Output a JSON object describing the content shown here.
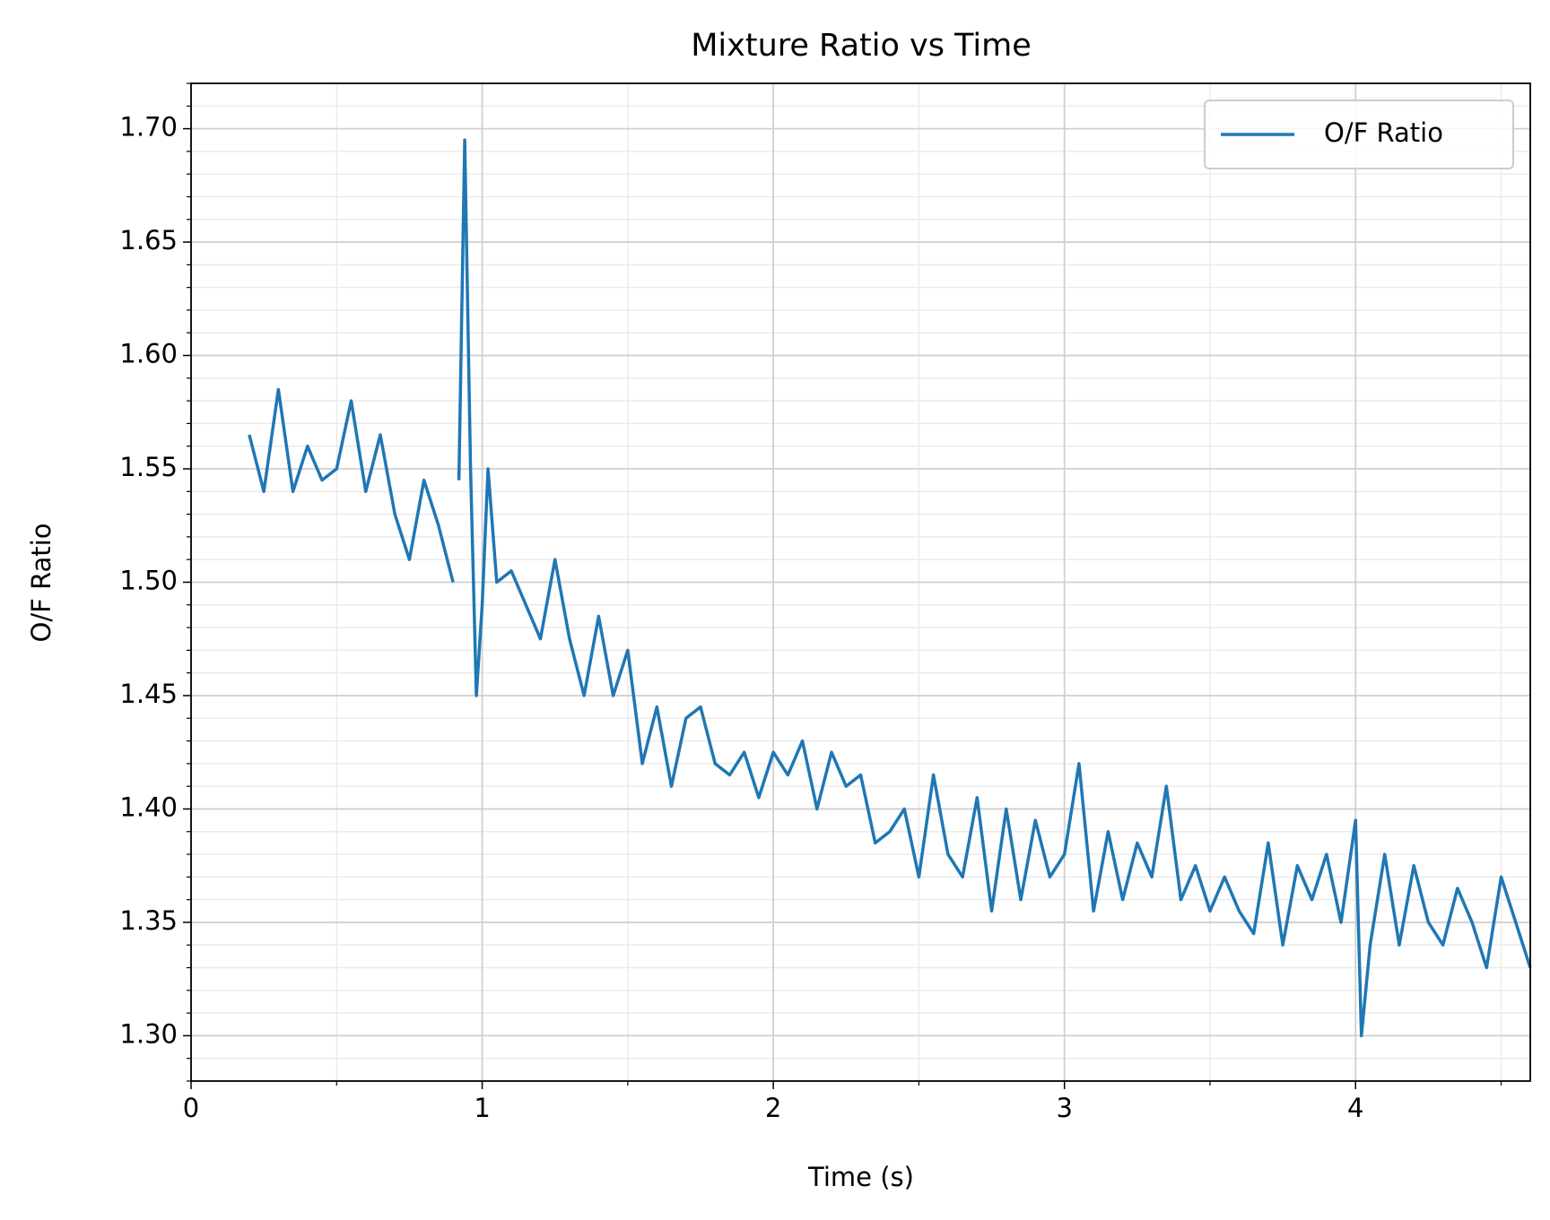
{
  "chart_data": {
    "type": "line",
    "title": "Mixture Ratio vs Time",
    "xlabel": "Time (s)",
    "ylabel": "O/F Ratio",
    "x": [
      0.2,
      0.25,
      0.3,
      0.35,
      0.4,
      0.45,
      0.5,
      0.55,
      0.6,
      0.65,
      0.7,
      0.75,
      0.8,
      0.85,
      0.9,
      0.91,
      0.92,
      0.94,
      0.96,
      0.98,
      1.0,
      1.02,
      1.05,
      1.1,
      1.15,
      1.2,
      1.25,
      1.3,
      1.35,
      1.4,
      1.45,
      1.5,
      1.55,
      1.6,
      1.65,
      1.7,
      1.75,
      1.8,
      1.85,
      1.9,
      1.95,
      2.0,
      2.05,
      2.1,
      2.15,
      2.2,
      2.25,
      2.3,
      2.35,
      2.4,
      2.45,
      2.5,
      2.55,
      2.6,
      2.65,
      2.7,
      2.75,
      2.8,
      2.85,
      2.9,
      2.95,
      3.0,
      3.05,
      3.1,
      3.15,
      3.2,
      3.25,
      3.3,
      3.35,
      3.4,
      3.45,
      3.5,
      3.55,
      3.6,
      3.65,
      3.7,
      3.75,
      3.8,
      3.85,
      3.9,
      3.95,
      4.0,
      4.02,
      4.05,
      4.1,
      4.15,
      4.2,
      4.25,
      4.3,
      4.35,
      4.4,
      4.45,
      4.5,
      4.55,
      4.6
    ],
    "series": [
      {
        "name": "O/F Ratio",
        "color": "#1f77b4",
        "values": [
          1.565,
          1.54,
          1.585,
          1.54,
          1.56,
          1.545,
          1.55,
          1.58,
          1.54,
          1.565,
          1.53,
          1.51,
          1.545,
          1.525,
          1.5,
          null,
          1.545,
          1.695,
          1.55,
          1.45,
          1.49,
          1.55,
          1.5,
          1.505,
          1.49,
          1.475,
          1.51,
          1.475,
          1.45,
          1.485,
          1.45,
          1.47,
          1.42,
          1.445,
          1.41,
          1.44,
          1.445,
          1.42,
          1.415,
          1.425,
          1.405,
          1.425,
          1.415,
          1.43,
          1.4,
          1.425,
          1.41,
          1.415,
          1.385,
          1.39,
          1.4,
          1.37,
          1.415,
          1.38,
          1.37,
          1.405,
          1.355,
          1.4,
          1.36,
          1.395,
          1.37,
          1.38,
          1.42,
          1.355,
          1.39,
          1.36,
          1.385,
          1.37,
          1.41,
          1.36,
          1.375,
          1.355,
          1.37,
          1.355,
          1.345,
          1.385,
          1.34,
          1.375,
          1.36,
          1.38,
          1.35,
          1.395,
          1.3,
          1.34,
          1.38,
          1.34,
          1.375,
          1.35,
          1.34,
          1.365,
          1.35,
          1.33,
          1.37,
          1.35,
          1.33
        ]
      }
    ],
    "xlim": [
      0,
      4.6
    ],
    "xticks": [
      0,
      1,
      2,
      3,
      4
    ],
    "xminorticks": [
      0.5,
      1.5,
      2.5,
      3.5,
      4.5
    ],
    "ylim": [
      1.28,
      1.72
    ],
    "yticks": [
      {
        "value": 1.3,
        "label": "1.30"
      },
      1.35,
      {
        "value": 1.4,
        "label": "1.40"
      },
      1.45,
      {
        "value": 1.5,
        "label": "1.50"
      },
      1.55,
      {
        "value": 1.6,
        "label": "1.60"
      },
      1.65,
      {
        "value": 1.7,
        "label": "1.70"
      }
    ],
    "yminorticks": [
      1.28,
      1.29,
      1.31,
      1.32,
      1.33,
      1.34,
      1.36,
      1.37,
      1.38,
      1.39,
      1.41,
      1.42,
      1.43,
      1.44,
      1.46,
      1.47,
      1.48,
      1.49,
      1.51,
      1.52,
      1.53,
      1.54,
      1.56,
      1.57,
      1.58,
      1.59,
      1.61,
      1.62,
      1.63,
      1.64,
      1.66,
      1.67,
      1.68,
      1.69,
      1.71,
      1.72
    ],
    "grid": true,
    "minor_grid": true,
    "legend": "upper right"
  }
}
